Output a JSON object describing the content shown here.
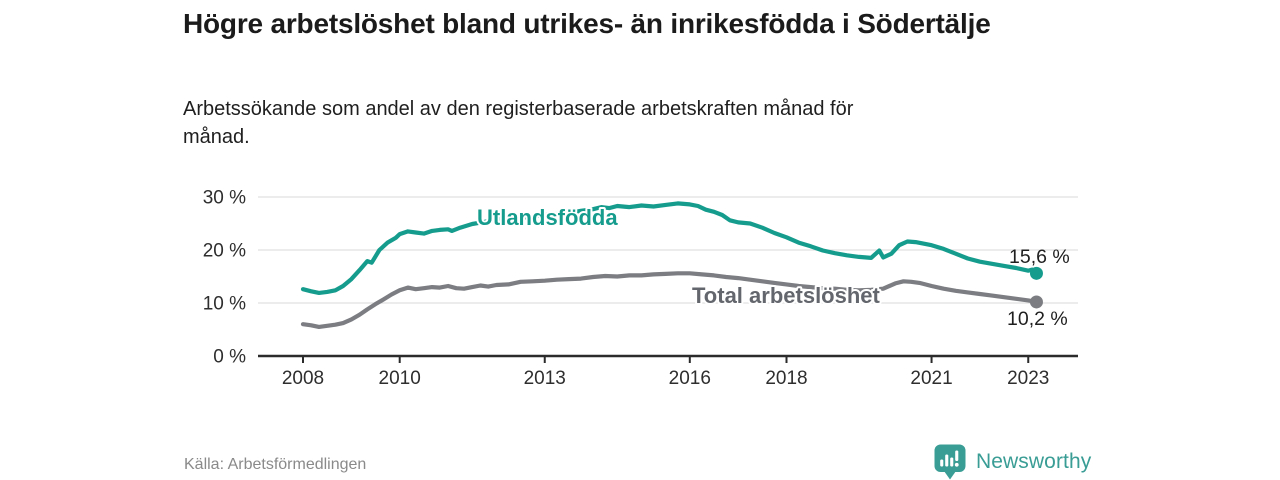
{
  "header": {
    "title": "Högre arbetslöshet bland utrikes- än inrikesfödda i Södertälje",
    "subtitle": "Arbetssökande som andel av den registerbaserade arbetskraften månad för månad."
  },
  "chart_data": {
    "type": "line",
    "title": "Högre arbetslöshet bland utrikes- än inrikesfödda i Södertälje",
    "subtitle": "Arbetssökande som andel av den registerbaserade arbetskraften månad för månad.",
    "xlabel": "",
    "ylabel": "",
    "x_axis": {
      "tick_years": [
        2008,
        2010,
        2013,
        2016,
        2018,
        2021,
        2023
      ],
      "range": [
        2007.1,
        2024.0
      ]
    },
    "y_axis": {
      "tick_values": [
        0,
        10,
        20,
        30
      ],
      "tick_labels": [
        "0 %",
        "10 %",
        "20 %",
        "30 %"
      ],
      "range": [
        0,
        30
      ]
    },
    "grid": "horizontal",
    "legend_position": "inline-labels",
    "series": [
      {
        "name": "Utlandsfödda",
        "key": "utlandsfodda",
        "color": "#169c8d",
        "end_label": "15,6 %",
        "points": [
          [
            2008.0,
            12.6
          ],
          [
            2008.17,
            12.2
          ],
          [
            2008.33,
            11.9
          ],
          [
            2008.5,
            12.1
          ],
          [
            2008.67,
            12.4
          ],
          [
            2008.83,
            13.2
          ],
          [
            2009.0,
            14.5
          ],
          [
            2009.17,
            16.2
          ],
          [
            2009.33,
            17.9
          ],
          [
            2009.42,
            17.6
          ],
          [
            2009.58,
            20.0
          ],
          [
            2009.75,
            21.4
          ],
          [
            2009.92,
            22.3
          ],
          [
            2010.0,
            23.0
          ],
          [
            2010.17,
            23.5
          ],
          [
            2010.33,
            23.3
          ],
          [
            2010.5,
            23.1
          ],
          [
            2010.67,
            23.6
          ],
          [
            2010.83,
            23.8
          ],
          [
            2011.0,
            23.9
          ],
          [
            2011.08,
            23.6
          ],
          [
            2011.25,
            24.2
          ],
          [
            2011.5,
            24.9
          ],
          [
            2011.75,
            25.3
          ],
          [
            2012.0,
            25.8
          ],
          [
            2012.25,
            26.1
          ],
          [
            2012.5,
            26.0
          ],
          [
            2012.75,
            26.4
          ],
          [
            2013.0,
            26.6
          ],
          [
            2013.25,
            26.8
          ],
          [
            2013.5,
            27.0
          ],
          [
            2013.75,
            27.4
          ],
          [
            2014.0,
            27.7
          ],
          [
            2014.17,
            28.1
          ],
          [
            2014.33,
            27.9
          ],
          [
            2014.5,
            28.3
          ],
          [
            2014.75,
            28.1
          ],
          [
            2015.0,
            28.4
          ],
          [
            2015.25,
            28.2
          ],
          [
            2015.5,
            28.5
          ],
          [
            2015.75,
            28.8
          ],
          [
            2016.0,
            28.6
          ],
          [
            2016.17,
            28.3
          ],
          [
            2016.33,
            27.6
          ],
          [
            2016.5,
            27.2
          ],
          [
            2016.67,
            26.6
          ],
          [
            2016.83,
            25.6
          ],
          [
            2017.0,
            25.2
          ],
          [
            2017.25,
            25.0
          ],
          [
            2017.5,
            24.2
          ],
          [
            2017.75,
            23.2
          ],
          [
            2018.0,
            22.4
          ],
          [
            2018.25,
            21.4
          ],
          [
            2018.5,
            20.7
          ],
          [
            2018.75,
            19.9
          ],
          [
            2019.0,
            19.4
          ],
          [
            2019.25,
            19.0
          ],
          [
            2019.5,
            18.7
          ],
          [
            2019.75,
            18.5
          ],
          [
            2019.92,
            19.9
          ],
          [
            2020.0,
            18.6
          ],
          [
            2020.17,
            19.3
          ],
          [
            2020.33,
            20.9
          ],
          [
            2020.5,
            21.6
          ],
          [
            2020.67,
            21.5
          ],
          [
            2020.83,
            21.2
          ],
          [
            2021.0,
            20.9
          ],
          [
            2021.25,
            20.2
          ],
          [
            2021.5,
            19.3
          ],
          [
            2021.75,
            18.4
          ],
          [
            2022.0,
            17.8
          ],
          [
            2022.25,
            17.4
          ],
          [
            2022.5,
            17.0
          ],
          [
            2022.75,
            16.6
          ],
          [
            2023.0,
            16.1
          ],
          [
            2023.08,
            16.3
          ],
          [
            2023.17,
            15.6
          ]
        ]
      },
      {
        "name": "Total arbetslöshet",
        "key": "total-arbetsloshet",
        "color": "#7b7d82",
        "label_color": "#63666c",
        "end_label": "10,2 %",
        "points": [
          [
            2008.0,
            6.0
          ],
          [
            2008.17,
            5.8
          ],
          [
            2008.33,
            5.5
          ],
          [
            2008.5,
            5.7
          ],
          [
            2008.67,
            5.9
          ],
          [
            2008.83,
            6.2
          ],
          [
            2009.0,
            6.9
          ],
          [
            2009.17,
            7.8
          ],
          [
            2009.33,
            8.8
          ],
          [
            2009.5,
            9.8
          ],
          [
            2009.67,
            10.7
          ],
          [
            2009.83,
            11.6
          ],
          [
            2010.0,
            12.4
          ],
          [
            2010.17,
            12.9
          ],
          [
            2010.33,
            12.6
          ],
          [
            2010.5,
            12.8
          ],
          [
            2010.67,
            13.0
          ],
          [
            2010.83,
            12.9
          ],
          [
            2011.0,
            13.2
          ],
          [
            2011.17,
            12.8
          ],
          [
            2011.33,
            12.7
          ],
          [
            2011.5,
            13.0
          ],
          [
            2011.67,
            13.3
          ],
          [
            2011.83,
            13.1
          ],
          [
            2012.0,
            13.4
          ],
          [
            2012.25,
            13.5
          ],
          [
            2012.5,
            14.0
          ],
          [
            2012.75,
            14.1
          ],
          [
            2013.0,
            14.2
          ],
          [
            2013.25,
            14.4
          ],
          [
            2013.5,
            14.5
          ],
          [
            2013.75,
            14.6
          ],
          [
            2014.0,
            14.9
          ],
          [
            2014.25,
            15.1
          ],
          [
            2014.5,
            15.0
          ],
          [
            2014.75,
            15.2
          ],
          [
            2015.0,
            15.2
          ],
          [
            2015.25,
            15.4
          ],
          [
            2015.5,
            15.5
          ],
          [
            2015.75,
            15.6
          ],
          [
            2016.0,
            15.6
          ],
          [
            2016.25,
            15.4
          ],
          [
            2016.5,
            15.2
          ],
          [
            2016.75,
            14.9
          ],
          [
            2017.0,
            14.7
          ],
          [
            2017.25,
            14.4
          ],
          [
            2017.5,
            14.1
          ],
          [
            2017.75,
            13.8
          ],
          [
            2018.0,
            13.5
          ],
          [
            2018.25,
            13.2
          ],
          [
            2018.5,
            13.0
          ],
          [
            2018.75,
            12.8
          ],
          [
            2019.0,
            12.7
          ],
          [
            2019.25,
            12.5
          ],
          [
            2019.5,
            12.4
          ],
          [
            2019.75,
            12.5
          ],
          [
            2020.0,
            12.7
          ],
          [
            2020.25,
            13.7
          ],
          [
            2020.42,
            14.1
          ],
          [
            2020.58,
            14.0
          ],
          [
            2020.75,
            13.8
          ],
          [
            2021.0,
            13.2
          ],
          [
            2021.25,
            12.7
          ],
          [
            2021.5,
            12.3
          ],
          [
            2021.75,
            12.0
          ],
          [
            2022.0,
            11.7
          ],
          [
            2022.25,
            11.4
          ],
          [
            2022.5,
            11.1
          ],
          [
            2022.75,
            10.8
          ],
          [
            2023.0,
            10.5
          ],
          [
            2023.17,
            10.2
          ]
        ]
      }
    ]
  },
  "footer": {
    "source": "Källa: Arbetsförmedlingen",
    "brand": "Newsworthy"
  },
  "colors": {
    "accent_teal": "#169c8d",
    "line_gray": "#7b7d82",
    "brand_teal": "#3a9d95",
    "axis_line": "#2b2b2b",
    "grid_line": "#e0e0e0",
    "axis_text": "#2e2e2e",
    "value_text": "#1f1f1f",
    "muted_text": "#8a8a8a"
  }
}
